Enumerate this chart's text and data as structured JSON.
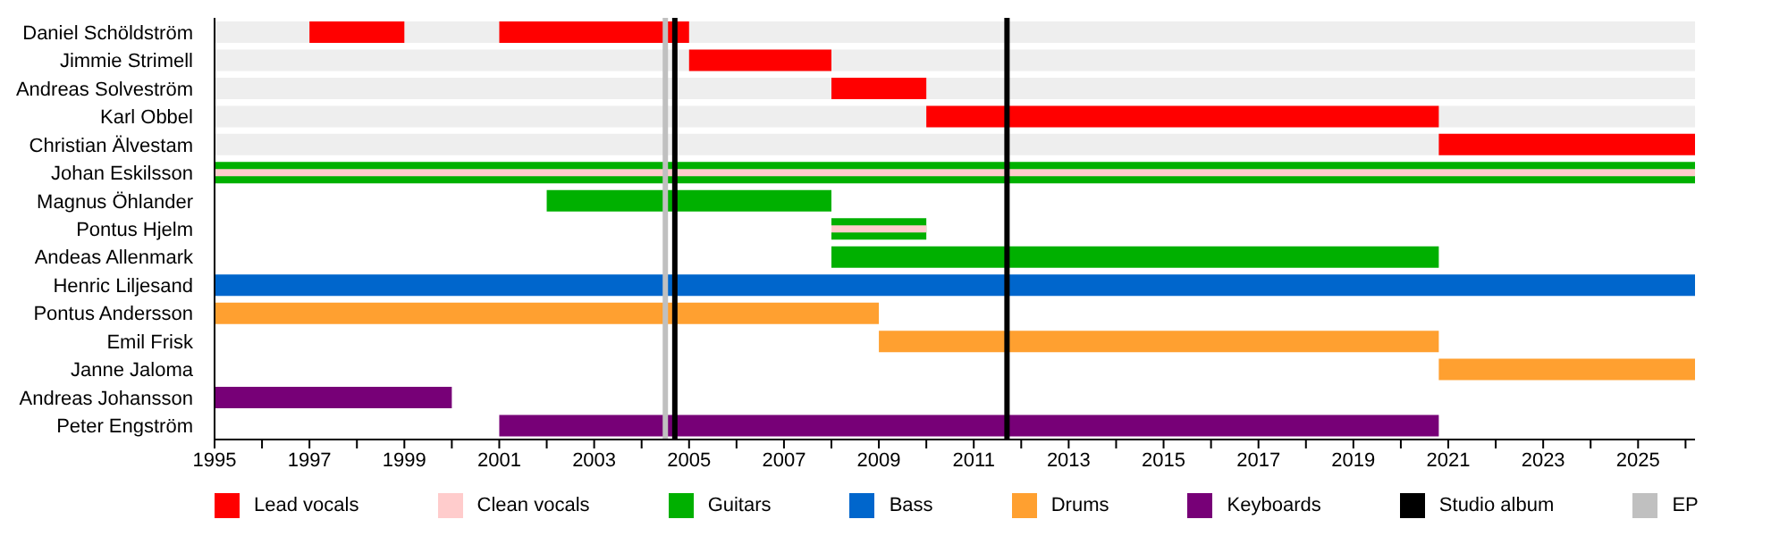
{
  "chart_data": {
    "type": "bar",
    "orientation": "horizontal",
    "categories": [
      "Daniel Schöldström",
      "Jimmie Strimell",
      "Andreas Solveström",
      "Karl Obbel",
      "Christian Älvestam",
      "Johan Eskilsson",
      "Magnus Öhlander",
      "Pontus Hjelm",
      "Andeas Allenmark",
      "Henric Liljesand",
      "Pontus Andersson",
      "Emil Frisk",
      "Janne Jaloma",
      "Andreas Johansson",
      "Peter Engström"
    ],
    "series": [
      {
        "name": "Lead vocals",
        "color": "#ff0000",
        "base": [
          1997,
          2005,
          2008,
          2010,
          2020.8,
          null,
          null,
          null,
          null,
          null,
          null,
          null,
          null,
          null,
          null
        ],
        "values": [
          2,
          3,
          2,
          10.8,
          5.4,
          null,
          null,
          null,
          null,
          null,
          null,
          null,
          null,
          null,
          null
        ]
      },
      {
        "color": "#ff0000",
        "base": [
          2001,
          null,
          null,
          null,
          null,
          null,
          null,
          null,
          null,
          null,
          null,
          null,
          null,
          null,
          null
        ],
        "values": [
          4,
          null,
          null,
          null,
          null,
          null,
          null,
          null,
          null,
          null,
          null,
          null,
          null,
          null,
          null
        ]
      },
      {
        "name": "Clean vocals",
        "color": "#ffcccc",
        "base": [
          null,
          null,
          null,
          null,
          null,
          1995,
          null,
          2008,
          null,
          null,
          null,
          null,
          null,
          null,
          null
        ],
        "values": [
          null,
          null,
          null,
          null,
          null,
          31.2,
          null,
          2,
          null,
          null,
          null,
          null,
          null,
          null,
          null
        ]
      },
      {
        "name": "Guitars",
        "color": "#00b000",
        "base": [
          null,
          null,
          null,
          null,
          null,
          1995,
          2002,
          2008,
          2008,
          null,
          null,
          null,
          null,
          null,
          null
        ],
        "values": [
          null,
          null,
          null,
          null,
          null,
          31.2,
          6,
          2,
          12.8,
          null,
          null,
          null,
          null,
          null,
          null
        ]
      },
      {
        "name": "Bass",
        "color": "#0066cc",
        "base": [
          null,
          null,
          null,
          null,
          null,
          null,
          null,
          null,
          null,
          1995,
          null,
          null,
          null,
          null,
          null
        ],
        "values": [
          null,
          null,
          null,
          null,
          null,
          null,
          null,
          null,
          null,
          31.2,
          null,
          null,
          null,
          null,
          null
        ]
      },
      {
        "name": "Drums",
        "color": "#ffa030",
        "base": [
          null,
          null,
          null,
          null,
          null,
          null,
          null,
          null,
          null,
          null,
          1995,
          2009,
          2020.8,
          null,
          null
        ],
        "values": [
          null,
          null,
          null,
          null,
          null,
          null,
          null,
          null,
          null,
          null,
          14,
          11.8,
          5.4,
          null,
          null
        ]
      },
      {
        "name": "Keyboards",
        "color": "#770077",
        "base": [
          null,
          null,
          null,
          null,
          null,
          null,
          null,
          null,
          null,
          null,
          null,
          null,
          null,
          1995,
          2001
        ],
        "values": [
          null,
          null,
          null,
          null,
          null,
          null,
          null,
          null,
          null,
          null,
          null,
          null,
          null,
          5,
          19.8
        ]
      }
    ],
    "xlim": [
      1995,
      2026.2
    ],
    "xticks": [
      1995,
      {
        "value": 1996,
        "label": null
      },
      1997,
      {
        "value": 1998,
        "label": null
      },
      1999,
      {
        "value": 2000,
        "label": null
      },
      2001,
      {
        "value": 2002,
        "label": null
      },
      2003,
      {
        "value": 2004,
        "label": null
      },
      2005,
      {
        "value": 2006,
        "label": null
      },
      2007,
      {
        "value": 2008,
        "label": null
      },
      2009,
      {
        "value": 2010,
        "label": null
      },
      2011,
      {
        "value": 2012,
        "label": null
      },
      2013,
      {
        "value": 2014,
        "label": null
      },
      2015,
      {
        "value": 2016,
        "label": null
      },
      2017,
      {
        "value": 2018,
        "label": null
      },
      2019,
      {
        "value": 2020,
        "label": null
      },
      2021,
      {
        "value": 2022,
        "label": null
      },
      2023,
      {
        "value": 2024,
        "label": null
      },
      2025,
      {
        "value": 2026,
        "label": null
      }
    ],
    "ref_lines": [
      {
        "axis": "x",
        "value": 2004.5,
        "label": "EP",
        "color": "#c0c0c0"
      },
      {
        "axis": "x",
        "value": 2004.7,
        "label": "Studio album",
        "color": "#000000"
      },
      {
        "axis": "x",
        "value": 2011.7,
        "color": "#000000"
      }
    ],
    "legend": "bottom"
  }
}
